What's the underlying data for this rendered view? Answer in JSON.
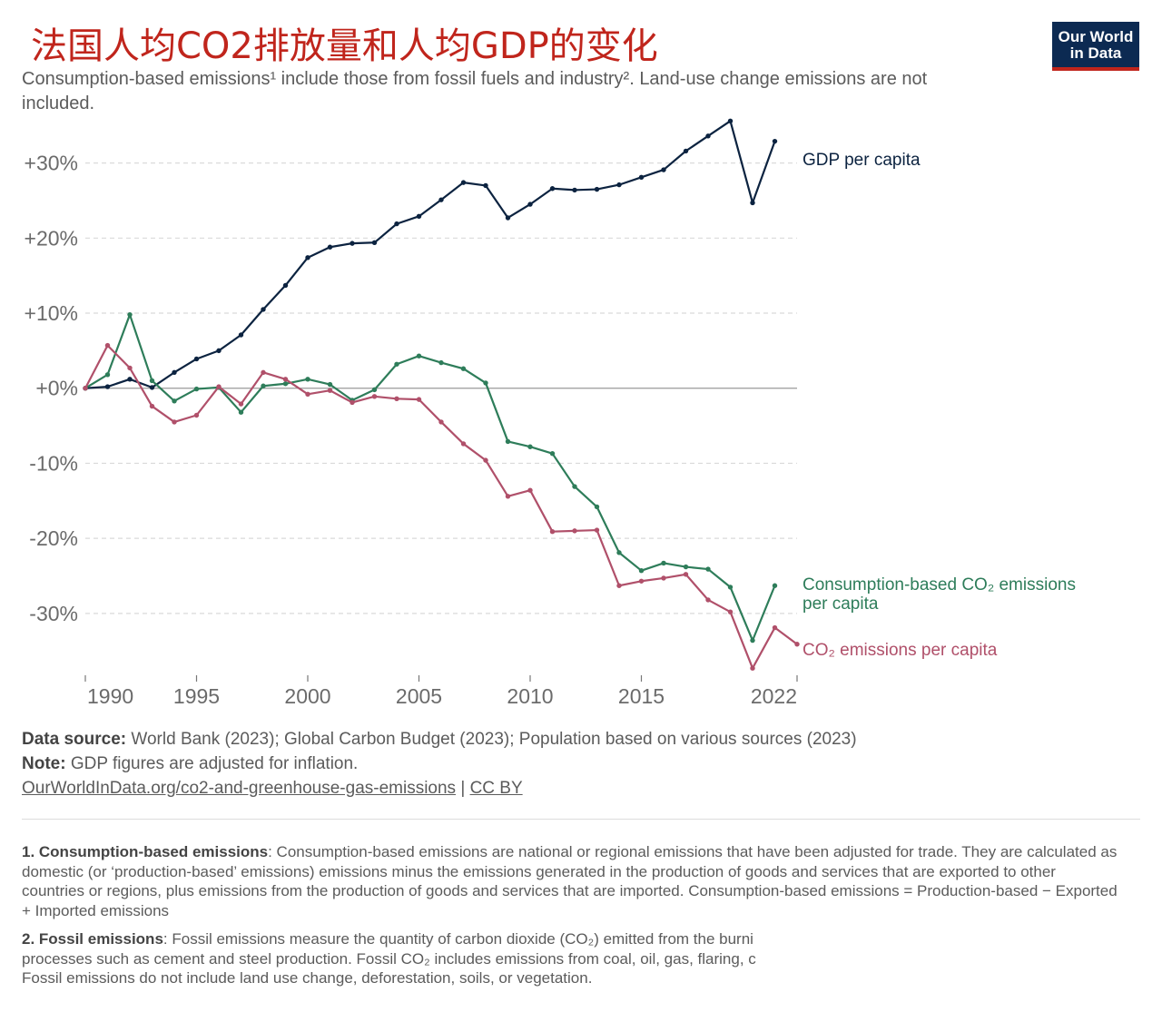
{
  "title": "法国人均CO2排放量和人均GDP的变化",
  "subtitle": "Consumption-based emissions¹ include those from fossil fuels and industry². Land-use change emissions are not included.",
  "logo": {
    "line1": "Our World",
    "line2": "in Data",
    "bg_color": "#0c2a52",
    "accent_color": "#c0251c"
  },
  "chart_data": {
    "type": "line",
    "x": [
      1990,
      1991,
      1992,
      1993,
      1994,
      1995,
      1996,
      1997,
      1998,
      1999,
      2000,
      2001,
      2002,
      2003,
      2004,
      2005,
      2006,
      2007,
      2008,
      2009,
      2010,
      2011,
      2012,
      2013,
      2014,
      2015,
      2016,
      2017,
      2018,
      2019,
      2020,
      2021,
      2022
    ],
    "ylim": [
      -38,
      36
    ],
    "y_ticks": [
      30,
      20,
      10,
      0,
      -10,
      -20,
      -30
    ],
    "y_tick_labels": [
      "+30%",
      "+20%",
      "+10%",
      "+0%",
      "-10%",
      "-20%",
      "-30%"
    ],
    "x_ticks": [
      1990,
      1995,
      2000,
      2005,
      2010,
      2015,
      2022
    ],
    "grid": true,
    "series": [
      {
        "name": "GDP per capita",
        "color": "#0c2340",
        "values": [
          0,
          0.2,
          1.2,
          0.1,
          2.1,
          3.9,
          5.0,
          7.1,
          10.5,
          13.7,
          17.4,
          18.8,
          19.3,
          19.4,
          21.9,
          22.9,
          25.1,
          27.4,
          27.0,
          22.7,
          24.5,
          26.6,
          26.4,
          26.5,
          27.1,
          28.1,
          29.1,
          31.6,
          33.6,
          35.6,
          24.7,
          32.9,
          null
        ]
      },
      {
        "name": "Consumption-based CO₂ emissions per capita",
        "color": "#2e7d5a",
        "values": [
          0,
          1.8,
          9.8,
          1.0,
          -1.7,
          -0.1,
          0.1,
          -3.2,
          0.3,
          0.6,
          1.2,
          0.5,
          -1.6,
          -0.2,
          3.2,
          4.3,
          3.4,
          2.6,
          0.7,
          -7.1,
          -7.8,
          -8.7,
          -13.1,
          -15.8,
          -21.9,
          -24.3,
          -23.3,
          -23.8,
          -24.1,
          -26.5,
          -33.6,
          -26.3,
          null
        ]
      },
      {
        "name": "CO₂ emissions per capita",
        "color": "#b0506a",
        "values": [
          0,
          5.7,
          2.7,
          -2.4,
          -4.5,
          -3.6,
          0.2,
          -2.1,
          2.1,
          1.2,
          -0.8,
          -0.3,
          -1.9,
          -1.1,
          -1.4,
          -1.5,
          -4.5,
          -7.4,
          -9.6,
          -14.4,
          -13.6,
          -19.1,
          -19.0,
          -18.9,
          -26.3,
          -25.7,
          -25.3,
          -24.8,
          -28.2,
          -29.8,
          -37.3,
          -31.9,
          -34.1
        ]
      }
    ]
  },
  "footer": {
    "source_label": "Data source:",
    "source_text": " World Bank (2023); Global Carbon Budget (2023); Population based on various sources (2023)",
    "note_label": "Note:",
    "note_text": " GDP figures are adjusted for inflation.",
    "link": "OurWorldInData.org/co2-and-greenhouse-gas-emissions",
    "separator": " | ",
    "license": "CC BY"
  },
  "notes": {
    "n1_label": "1. Consumption-based emissions",
    "n1_text": ": Consumption-based emissions are national or regional emissions that have been adjusted for trade. They are calculated as domestic (or ‘production-based’ emissions) emissions minus the emissions generated in the production of goods and services that are exported to other countries or regions, plus emissions from the production of goods and services that are imported. Consumption-based emissions = Production-based − Exported + Imported emissions",
    "n2_label": "2. Fossil emissions",
    "n2_text_a": ": Fossil emissions measure the quantity of carbon dioxide (CO₂) emitted from the burni",
    "n2_text_b": "processes such as cement and steel production. Fossil CO₂ includes emissions from coal, oil, gas, flaring, c",
    "n2_text_c": "Fossil emissions do not include land use change, deforestation, soils, or vegetation."
  }
}
